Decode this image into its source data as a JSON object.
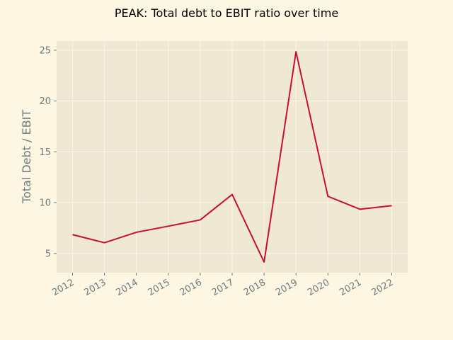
{
  "chart_data": {
    "type": "line",
    "title": "PEAK: Total debt to EBIT ratio over time",
    "xlabel": "",
    "ylabel": "Total Debt / EBIT",
    "x": [
      "2012",
      "2013",
      "2014",
      "2015",
      "2016",
      "2017",
      "2018",
      "2019",
      "2020",
      "2021",
      "2022"
    ],
    "series": [
      {
        "name": "",
        "values": [
          6.85,
          6.05,
          7.08,
          7.68,
          8.3,
          10.8,
          4.15,
          24.85,
          10.62,
          9.35,
          9.7
        ]
      }
    ],
    "yticks": [
      5,
      10,
      15,
      20,
      25
    ],
    "ylim": [
      3.1,
      25.9
    ],
    "grid": true,
    "legend": "none",
    "colors": {
      "figure_background": "#fdf6e3",
      "plot_background": "#eee8d5",
      "grid": "#fdf6e3",
      "line": "#c8102e",
      "text": "#6c7a80",
      "title": "#000000"
    }
  }
}
